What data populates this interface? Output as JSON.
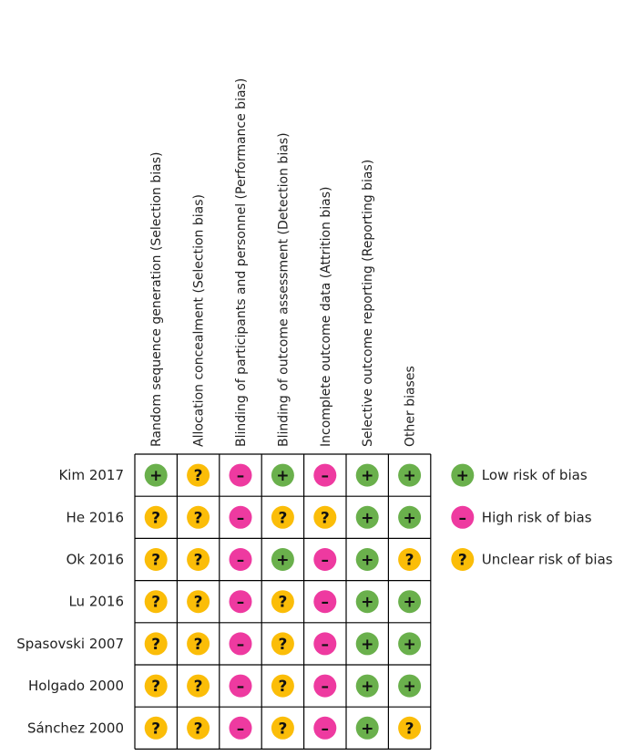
{
  "chart_data": {
    "type": "table",
    "columns": [
      "Random sequence generation (Selection bias)",
      "Allocation concealment (Selection bias)",
      "Blinding of participants and personnel (Performance bias)",
      "Blinding of outcome assessment (Detection bias)",
      "Incomplete outcome data (Attrition bias)",
      "Selective outcome reporting (Reporting bias)",
      "Other biases"
    ],
    "rows": [
      "Kim 2017",
      "He 2016",
      "Ok 2016",
      "Lu 2016",
      "Spasovski 2007",
      "Holgado 2000",
      "Sánchez 2000"
    ],
    "values": [
      [
        "low",
        "unclear",
        "high",
        "low",
        "high",
        "low",
        "low"
      ],
      [
        "unclear",
        "unclear",
        "high",
        "unclear",
        "unclear",
        "low",
        "low"
      ],
      [
        "unclear",
        "unclear",
        "high",
        "low",
        "high",
        "low",
        "unclear"
      ],
      [
        "unclear",
        "unclear",
        "high",
        "unclear",
        "high",
        "low",
        "low"
      ],
      [
        "unclear",
        "unclear",
        "high",
        "unclear",
        "high",
        "low",
        "low"
      ],
      [
        "unclear",
        "unclear",
        "high",
        "unclear",
        "high",
        "low",
        "low"
      ],
      [
        "unclear",
        "unclear",
        "high",
        "unclear",
        "high",
        "low",
        "unclear"
      ]
    ],
    "categories": {
      "low": {
        "label": "Low risk of bias",
        "symbol": "+",
        "color": "#6ab04c"
      },
      "high": {
        "label": "High risk of bias",
        "symbol": "–",
        "color": "#ee3aa0"
      },
      "unclear": {
        "label": "Unclear risk of bias",
        "symbol": "?",
        "color": "#fbbd08"
      }
    },
    "legend": [
      "low",
      "high",
      "unclear"
    ],
    "legend_position": "right",
    "grid": true
  }
}
